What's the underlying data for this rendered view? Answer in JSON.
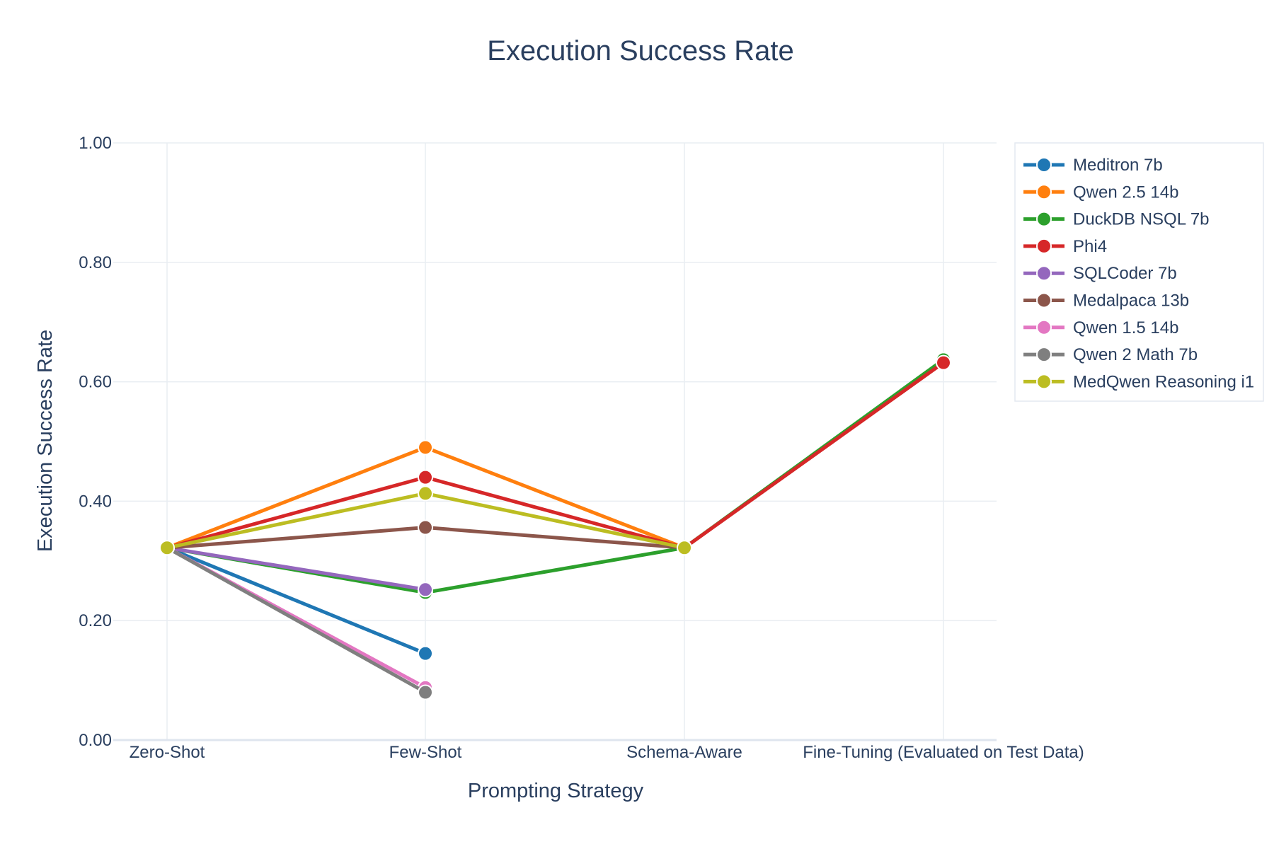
{
  "chart_data": {
    "type": "line",
    "title": "Execution Success Rate",
    "xlabel": "Prompting Strategy",
    "ylabel": "Execution Success Rate",
    "categories": [
      "Zero-Shot",
      "Few-Shot",
      "Schema-Aware",
      "Fine-Tuning (Evaluated on Test Data)"
    ],
    "ylim": [
      0,
      1
    ],
    "yticks": [
      "0.00",
      "0.20",
      "0.40",
      "0.60",
      "0.80",
      "1.00"
    ],
    "ytick_values": [
      0,
      0.2,
      0.4,
      0.6,
      0.8,
      1.0
    ],
    "grid": true,
    "legend_position": "top-right",
    "series": [
      {
        "name": "Meditron 7b",
        "color": "#1f77b4",
        "values": [
          0.322,
          0.145,
          null,
          null
        ]
      },
      {
        "name": "Qwen 2.5 14b",
        "color": "#ff7f0e",
        "values": [
          0.322,
          0.49,
          0.322,
          null
        ]
      },
      {
        "name": "DuckDB NSQL 7b",
        "color": "#2ca02c",
        "values": [
          0.322,
          0.247,
          0.322,
          0.637
        ]
      },
      {
        "name": "Phi4",
        "color": "#d62728",
        "values": [
          0.322,
          0.44,
          0.322,
          0.632
        ]
      },
      {
        "name": "SQLCoder 7b",
        "color": "#9467bd",
        "values": [
          0.322,
          0.252,
          null,
          null
        ]
      },
      {
        "name": "Medalpaca 13b",
        "color": "#8c564b",
        "values": [
          0.322,
          0.356,
          0.322,
          null
        ]
      },
      {
        "name": "Qwen 1.5 14b",
        "color": "#e377c2",
        "values": [
          0.322,
          0.088,
          null,
          null
        ]
      },
      {
        "name": "Qwen 2 Math 7b",
        "color": "#7f7f7f",
        "values": [
          0.322,
          0.08,
          null,
          null
        ]
      },
      {
        "name": "MedQwen Reasoning i1",
        "color": "#bcbd22",
        "values": [
          0.322,
          0.413,
          0.322,
          null
        ]
      }
    ]
  }
}
